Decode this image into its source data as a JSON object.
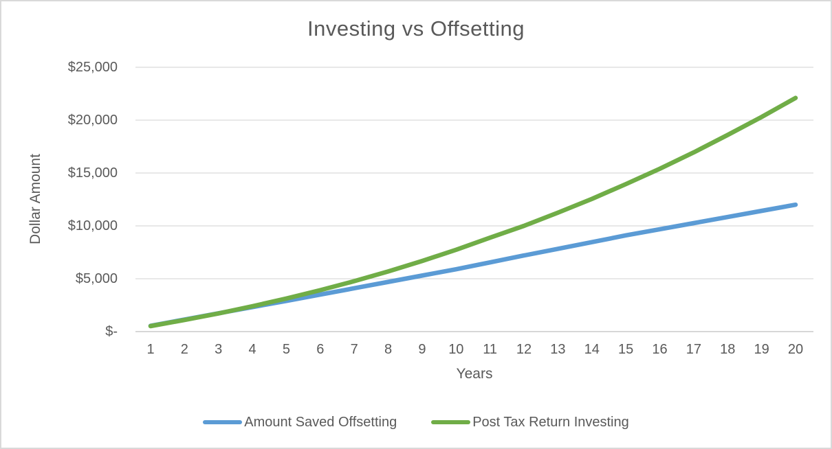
{
  "chart_data": {
    "type": "line",
    "title": "Investing vs Offsetting",
    "xlabel": "Years",
    "ylabel": "Dollar Amount",
    "x": [
      1,
      2,
      3,
      4,
      5,
      6,
      7,
      8,
      9,
      10,
      11,
      12,
      13,
      14,
      15,
      16,
      17,
      18,
      19,
      20
    ],
    "series": [
      {
        "name": "Amount Saved Offsetting",
        "color": "#5B9BD5",
        "values": [
          550,
          1140,
          1730,
          2320,
          2900,
          3500,
          4100,
          4700,
          5300,
          5900,
          6550,
          7200,
          7830,
          8460,
          9100,
          9680,
          10260,
          10840,
          11420,
          12000
        ]
      },
      {
        "name": "Post Tax Return Investing",
        "color": "#70AD47",
        "values": [
          520,
          1100,
          1720,
          2400,
          3130,
          3920,
          4770,
          5690,
          6680,
          7740,
          8880,
          10000,
          11250,
          12550,
          13950,
          15400,
          16950,
          18600,
          20300,
          22100
        ]
      }
    ],
    "ylim": [
      0,
      25000
    ],
    "ytick_values": [
      0,
      5000,
      10000,
      15000,
      20000,
      25000
    ],
    "ytick_labels": [
      "$-",
      "$5,000",
      "$10,000",
      "$15,000",
      "$20,000",
      "$25,000"
    ],
    "grid": "horizontal",
    "legend_position": "bottom",
    "colors": {
      "gridline": "#D9D9D9",
      "axis_line": "#BFBFBF",
      "text": "#595959",
      "frame_border": "#D9D9D9",
      "background": "#FFFFFF"
    }
  }
}
